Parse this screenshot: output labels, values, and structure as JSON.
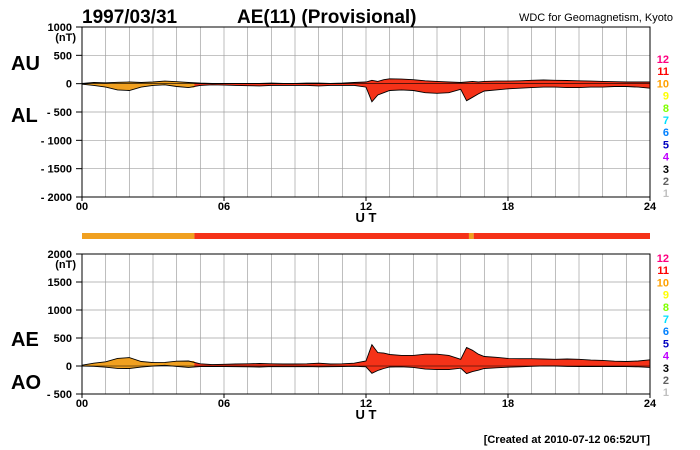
{
  "header": {
    "date": "1997/03/31",
    "title": "AE(11) (Provisional)",
    "source": "WDC for Geomagnetism, Kyoto"
  },
  "footer": {
    "created": "[Created at 2010-07-12 06:52UT]"
  },
  "station_count_scale": {
    "labels": [
      "12",
      "11",
      "10",
      "9",
      "8",
      "7",
      "6",
      "5",
      "4",
      "3",
      "2",
      "1"
    ],
    "colors": [
      "#ff0080",
      "#ff0000",
      "#ffa000",
      "#ffff00",
      "#80ff00",
      "#00e0ff",
      "#0080ff",
      "#0000c0",
      "#c000ff",
      "#000000",
      "#606060",
      "#c0c0c0"
    ]
  },
  "colors": {
    "series_fill_10": "#f0a020",
    "series_fill_11": "#f53218",
    "grid": "#a0a0a0"
  },
  "chart_data": [
    {
      "type": "area",
      "panel": "AU/AL",
      "ylabel_top": "AU",
      "ylabel_bottom": "AL",
      "unit": "(nT)",
      "xlabel": "U T",
      "x_ticks": [
        "00",
        "06",
        "12",
        "18",
        "24"
      ],
      "xlim": [
        0,
        24
      ],
      "ylim": [
        -2000,
        1000
      ],
      "y_ticks": [
        1000,
        500,
        0,
        -500,
        -1000,
        -1500,
        -2000
      ],
      "y_tick_labels": [
        "1000",
        "500",
        "0",
        "- 500",
        "- 1000",
        "- 1500",
        "- 2000"
      ],
      "grid": true,
      "hours": [
        0,
        0.5,
        1,
        1.5,
        2,
        2.5,
        3,
        3.5,
        4,
        4.5,
        5,
        5.5,
        6,
        6.5,
        7,
        7.5,
        8,
        8.5,
        9,
        9.5,
        10,
        10.5,
        11,
        11.5,
        12,
        12.25,
        12.5,
        12.75,
        13,
        13.5,
        14,
        14.5,
        15,
        15.5,
        16,
        16.25,
        16.5,
        16.75,
        17,
        17.5,
        18,
        18.5,
        19,
        19.5,
        20,
        20.5,
        21,
        21.5,
        22,
        22.5,
        23,
        23.5,
        24
      ],
      "series": [
        {
          "name": "AU",
          "values": [
            5,
            20,
            15,
            25,
            30,
            20,
            30,
            45,
            35,
            20,
            10,
            5,
            5,
            5,
            5,
            5,
            10,
            5,
            5,
            10,
            10,
            5,
            10,
            20,
            30,
            60,
            40,
            70,
            85,
            80,
            70,
            50,
            40,
            30,
            20,
            30,
            40,
            30,
            40,
            45,
            45,
            50,
            60,
            65,
            60,
            55,
            50,
            45,
            40,
            35,
            30,
            30,
            30
          ]
        },
        {
          "name": "AL",
          "values": [
            -10,
            -30,
            -60,
            -110,
            -120,
            -60,
            -30,
            -20,
            -50,
            -70,
            -30,
            -20,
            -25,
            -30,
            -35,
            -40,
            -30,
            -30,
            -30,
            -30,
            -40,
            -30,
            -30,
            -30,
            -60,
            -320,
            -200,
            -160,
            -120,
            -110,
            -120,
            -160,
            -170,
            -160,
            -100,
            -300,
            -240,
            -180,
            -130,
            -110,
            -90,
            -80,
            -70,
            -60,
            -60,
            -70,
            -70,
            -60,
            -60,
            -50,
            -50,
            -60,
            -80
          ]
        }
      ]
    },
    {
      "type": "area",
      "panel": "AE/AO",
      "ylabel_top": "AE",
      "ylabel_bottom": "AO",
      "unit": "(nT)",
      "xlabel": "U T",
      "x_ticks": [
        "00",
        "06",
        "12",
        "18",
        "24"
      ],
      "xlim": [
        0,
        24
      ],
      "ylim": [
        -500,
        2000
      ],
      "y_ticks": [
        2000,
        1500,
        1000,
        500,
        0,
        -500
      ],
      "y_tick_labels": [
        "2000",
        "1500",
        "1000",
        "500",
        "0",
        "- 500"
      ],
      "grid": true,
      "hours": [
        0,
        0.5,
        1,
        1.5,
        2,
        2.5,
        3,
        3.5,
        4,
        4.5,
        5,
        5.5,
        6,
        6.5,
        7,
        7.5,
        8,
        8.5,
        9,
        9.5,
        10,
        10.5,
        11,
        11.5,
        12,
        12.25,
        12.5,
        12.75,
        13,
        13.5,
        14,
        14.5,
        15,
        15.5,
        16,
        16.25,
        16.5,
        16.75,
        17,
        17.5,
        18,
        18.5,
        19,
        19.5,
        20,
        20.5,
        21,
        21.5,
        22,
        22.5,
        23,
        23.5,
        24
      ],
      "series": [
        {
          "name": "AE",
          "values": [
            15,
            50,
            75,
            135,
            150,
            80,
            60,
            65,
            85,
            90,
            40,
            25,
            30,
            35,
            40,
            45,
            40,
            35,
            35,
            40,
            50,
            35,
            40,
            50,
            90,
            380,
            240,
            230,
            205,
            190,
            190,
            210,
            210,
            190,
            120,
            330,
            280,
            210,
            170,
            155,
            135,
            130,
            130,
            125,
            120,
            125,
            120,
            105,
            100,
            85,
            80,
            90,
            110
          ]
        },
        {
          "name": "AO",
          "values": [
            -2,
            -5,
            -22,
            -42,
            -45,
            -20,
            0,
            12,
            -7,
            -25,
            -10,
            -7,
            -10,
            -12,
            -15,
            -17,
            -10,
            -12,
            -12,
            -10,
            -15,
            -12,
            -10,
            -5,
            -15,
            -130,
            -80,
            -45,
            -17,
            -15,
            -25,
            -55,
            -65,
            -65,
            -40,
            -135,
            -100,
            -75,
            -45,
            -32,
            -22,
            -15,
            -5,
            2,
            0,
            -7,
            -10,
            -7,
            -10,
            -7,
            -10,
            -15,
            -25
          ]
        }
      ]
    }
  ],
  "station_bar": {
    "segments": [
      {
        "start": 0,
        "end": 4.75,
        "count": 10,
        "color": "#f0a020"
      },
      {
        "start": 4.75,
        "end": 16.35,
        "count": 11,
        "color": "#f53218"
      },
      {
        "start": 16.35,
        "end": 16.55,
        "count": 10,
        "color": "#f0a020"
      },
      {
        "start": 16.55,
        "end": 24,
        "count": 11,
        "color": "#f53218"
      }
    ]
  }
}
